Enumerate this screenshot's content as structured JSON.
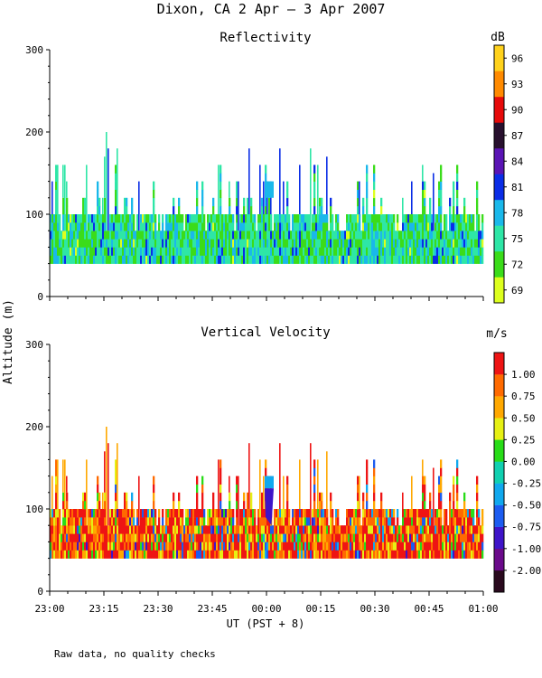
{
  "title": "Dixon, CA  2 Apr —  3 Apr 2007",
  "ylabel": "Altitude (m)",
  "xlabel": "UT  (PST + 8)",
  "footnote": "Raw data, no quality checks",
  "x_ticks": [
    "23:00",
    "23:15",
    "23:30",
    "23:45",
    "00:00",
    "00:15",
    "00:30",
    "00:45",
    "01:00"
  ],
  "chart_data": [
    {
      "type": "heatmap",
      "title": "Reflectivity",
      "colorbar_unit": "dB",
      "colorbar_levels": [
        "69",
        "72",
        "75",
        "78",
        "81",
        "84",
        "87",
        "90",
        "93",
        "96"
      ],
      "colorbar_colors": [
        "#ddff1e",
        "#3bdc1a",
        "#2ee6a6",
        "#1ab8ea",
        "#0a2de6",
        "#5a14b4",
        "#28102e",
        "#e60a0a",
        "#ff8a00",
        "#ffd21c"
      ],
      "y_ticks": [
        "0",
        "100",
        "200",
        "300"
      ],
      "ylim": [
        0,
        300
      ],
      "xlim": [
        "23:00",
        "01:00"
      ],
      "echo_base_m": 40,
      "typical_echo_top_m": 100,
      "max_echo_top_m": 200
    },
    {
      "type": "heatmap",
      "title": "Vertical Velocity",
      "colorbar_unit": "m/s",
      "colorbar_levels": [
        "-2.00",
        "-1.00",
        "-0.75",
        "-0.50",
        "-0.25",
        "0.00",
        "0.25",
        "0.50",
        "0.75",
        "1.00"
      ],
      "colorbar_colors": [
        "#2a0a1e",
        "#6a0a8a",
        "#3e14c8",
        "#1c5cf0",
        "#10a8ee",
        "#10d0b0",
        "#28dc18",
        "#e6f014",
        "#ffa800",
        "#ff6a00",
        "#ee1414"
      ],
      "y_ticks": [
        "0",
        "100",
        "200",
        "300"
      ],
      "ylim": [
        0,
        300
      ],
      "xlim": [
        "23:00",
        "01:00"
      ],
      "echo_base_m": 40,
      "typical_echo_top_m": 100,
      "max_echo_top_m": 200
    }
  ]
}
